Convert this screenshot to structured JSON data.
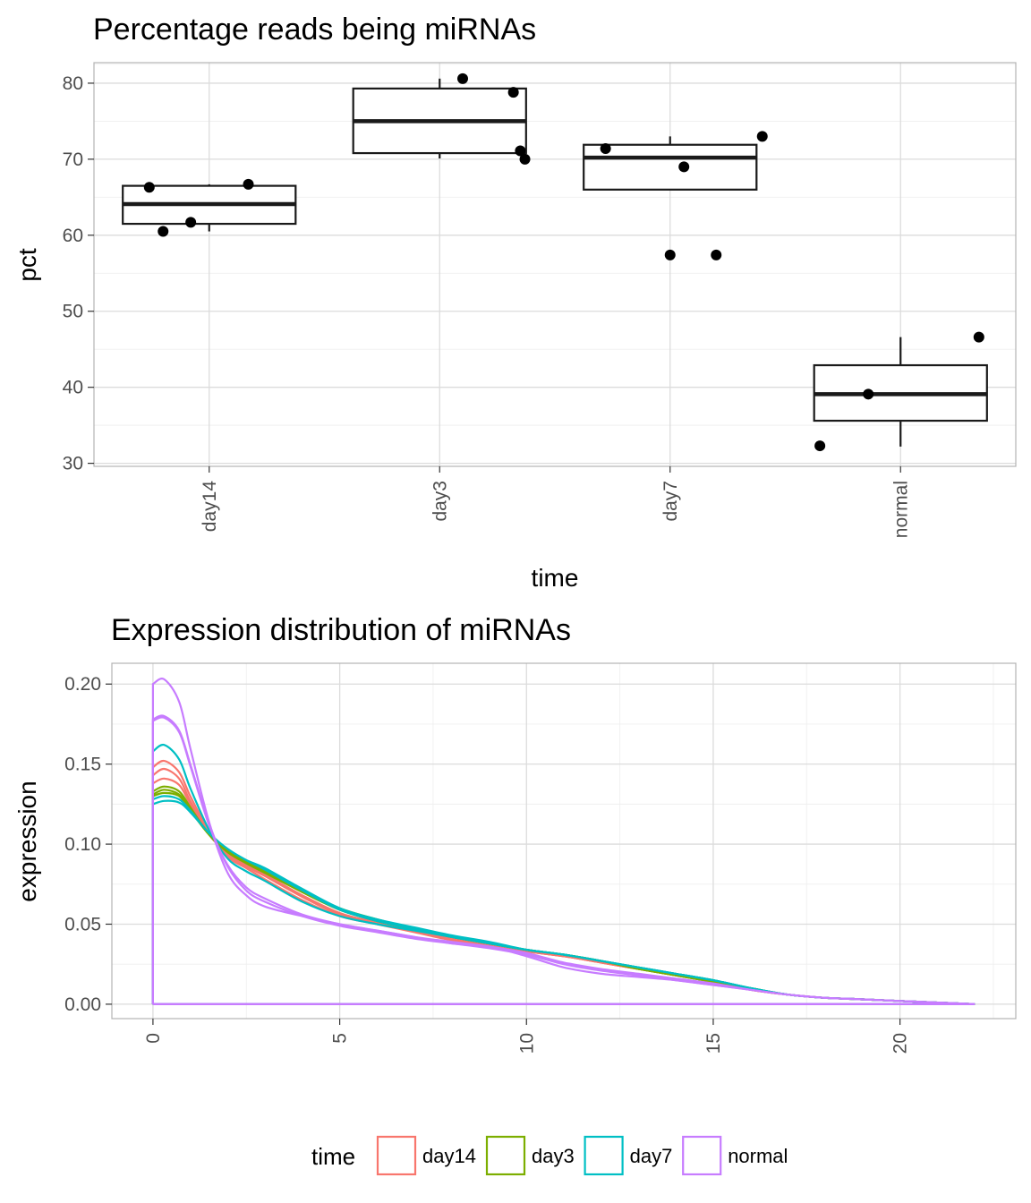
{
  "chart_data": [
    {
      "type": "box",
      "title": "Percentage reads being miRNAs",
      "xlabel": "time",
      "ylabel": "pct",
      "categories": [
        "day14",
        "day3",
        "day7",
        "normal"
      ],
      "yticks": [
        30,
        40,
        50,
        60,
        70,
        80
      ],
      "ylim": [
        29.6,
        82.7
      ],
      "grid": true,
      "boxes": [
        {
          "category": "day14",
          "whisker_low": 60.5,
          "q1": 61.5,
          "median": 64.1,
          "q3": 66.5,
          "whisker_high": 66.7
        },
        {
          "category": "day3",
          "whisker_low": 70.1,
          "q1": 70.8,
          "median": 75.0,
          "q3": 79.3,
          "whisker_high": 80.6
        },
        {
          "category": "day7",
          "whisker_low": 66.0,
          "q1": 66.0,
          "median": 70.2,
          "q3": 71.9,
          "whisker_high": 73.0
        },
        {
          "category": "normal",
          "whisker_low": 32.2,
          "q1": 35.6,
          "median": 39.1,
          "q3": 42.9,
          "whisker_high": 46.6
        }
      ],
      "points": [
        {
          "category": "day14",
          "jitter": -0.26,
          "y": 66.3
        },
        {
          "category": "day14",
          "jitter": -0.2,
          "y": 60.5
        },
        {
          "category": "day14",
          "jitter": -0.08,
          "y": 61.7
        },
        {
          "category": "day14",
          "jitter": 0.17,
          "y": 66.7
        },
        {
          "category": "day3",
          "jitter": 0.1,
          "y": 80.6
        },
        {
          "category": "day3",
          "jitter": 0.32,
          "y": 78.8
        },
        {
          "category": "day3",
          "jitter": 0.35,
          "y": 71.1
        },
        {
          "category": "day3",
          "jitter": 0.37,
          "y": 70.0
        },
        {
          "category": "day7",
          "jitter": -0.28,
          "y": 71.4
        },
        {
          "category": "day7",
          "jitter": 0.06,
          "y": 69.0
        },
        {
          "category": "day7",
          "jitter": 0.4,
          "y": 73.0
        },
        {
          "category": "day7",
          "jitter": 0.0,
          "y": 57.4
        },
        {
          "category": "day7",
          "jitter": 0.2,
          "y": 57.4
        },
        {
          "category": "normal",
          "jitter": -0.35,
          "y": 32.3
        },
        {
          "category": "normal",
          "jitter": -0.14,
          "y": 39.1
        },
        {
          "category": "normal",
          "jitter": 0.34,
          "y": 46.6
        }
      ]
    },
    {
      "type": "line",
      "title": "Expression distribution of miRNAs",
      "xlabel": "",
      "ylabel": "expression",
      "xticks": [
        0,
        5,
        10,
        15,
        20
      ],
      "yticks": [
        0.0,
        0.05,
        0.1,
        0.15,
        0.2
      ],
      "xlim": [
        -1.1,
        23.1
      ],
      "ylim": [
        -0.009,
        0.213
      ],
      "grid": true,
      "legend": {
        "title": "time",
        "position": "bottom"
      },
      "x": [
        0,
        0.3,
        0.7,
        1.0,
        1.5,
        2.0,
        2.5,
        3.0,
        4.0,
        5.0,
        6.0,
        7.0,
        8.0,
        9.0,
        10.0,
        11.0,
        12.0,
        13.0,
        14.0,
        15.0,
        16.0,
        17.0,
        18.0,
        19.0,
        20.0,
        21.0,
        22.0
      ],
      "series": [
        {
          "name": "day14",
          "color": "#F8766D",
          "values": [
            0.148,
            0.152,
            0.145,
            0.13,
            0.108,
            0.092,
            0.085,
            0.078,
            0.065,
            0.055,
            0.05,
            0.045,
            0.04,
            0.037,
            0.033,
            0.03,
            0.026,
            0.022,
            0.018,
            0.014,
            0.009,
            0.006,
            0.004,
            0.003,
            0.002,
            0.001,
            0.0
          ]
        },
        {
          "name": "day14",
          "color": "#F8766D",
          "values": [
            0.143,
            0.147,
            0.141,
            0.127,
            0.107,
            0.093,
            0.086,
            0.08,
            0.067,
            0.056,
            0.051,
            0.046,
            0.041,
            0.037,
            0.033,
            0.03,
            0.026,
            0.022,
            0.018,
            0.014,
            0.009,
            0.006,
            0.004,
            0.003,
            0.002,
            0.001,
            0.0
          ]
        },
        {
          "name": "day14",
          "color": "#F8766D",
          "values": [
            0.138,
            0.141,
            0.137,
            0.125,
            0.106,
            0.094,
            0.087,
            0.081,
            0.068,
            0.057,
            0.051,
            0.046,
            0.041,
            0.037,
            0.033,
            0.03,
            0.026,
            0.022,
            0.018,
            0.014,
            0.009,
            0.006,
            0.004,
            0.003,
            0.002,
            0.001,
            0.0
          ]
        },
        {
          "name": "day3",
          "color": "#7CAE00",
          "values": [
            0.133,
            0.136,
            0.133,
            0.123,
            0.106,
            0.095,
            0.088,
            0.082,
            0.07,
            0.059,
            0.052,
            0.047,
            0.042,
            0.038,
            0.034,
            0.031,
            0.027,
            0.022,
            0.018,
            0.014,
            0.01,
            0.006,
            0.004,
            0.003,
            0.002,
            0.001,
            0.0
          ]
        },
        {
          "name": "day3",
          "color": "#7CAE00",
          "values": [
            0.131,
            0.134,
            0.131,
            0.122,
            0.106,
            0.095,
            0.089,
            0.083,
            0.071,
            0.06,
            0.053,
            0.047,
            0.042,
            0.038,
            0.034,
            0.031,
            0.027,
            0.023,
            0.019,
            0.015,
            0.01,
            0.006,
            0.004,
            0.003,
            0.002,
            0.001,
            0.0
          ]
        },
        {
          "name": "day3",
          "color": "#7CAE00",
          "values": [
            0.13,
            0.132,
            0.13,
            0.121,
            0.106,
            0.096,
            0.089,
            0.083,
            0.07,
            0.059,
            0.052,
            0.047,
            0.042,
            0.038,
            0.034,
            0.031,
            0.027,
            0.022,
            0.018,
            0.014,
            0.01,
            0.006,
            0.004,
            0.003,
            0.002,
            0.001,
            0.0
          ]
        },
        {
          "name": "day7",
          "color": "#00BFC4",
          "values": [
            0.158,
            0.162,
            0.153,
            0.135,
            0.109,
            0.091,
            0.083,
            0.077,
            0.064,
            0.055,
            0.05,
            0.046,
            0.042,
            0.038,
            0.034,
            0.031,
            0.027,
            0.023,
            0.019,
            0.015,
            0.01,
            0.006,
            0.004,
            0.003,
            0.002,
            0.001,
            0.0
          ]
        },
        {
          "name": "day7",
          "color": "#00BFC4",
          "values": [
            0.128,
            0.13,
            0.128,
            0.121,
            0.107,
            0.097,
            0.09,
            0.084,
            0.071,
            0.059,
            0.052,
            0.047,
            0.042,
            0.038,
            0.034,
            0.031,
            0.027,
            0.023,
            0.019,
            0.015,
            0.01,
            0.006,
            0.004,
            0.003,
            0.002,
            0.001,
            0.0
          ]
        },
        {
          "name": "day7",
          "color": "#00BFC4",
          "values": [
            0.125,
            0.127,
            0.126,
            0.12,
            0.107,
            0.097,
            0.09,
            0.085,
            0.072,
            0.06,
            0.053,
            0.048,
            0.043,
            0.039,
            0.034,
            0.031,
            0.027,
            0.023,
            0.019,
            0.015,
            0.01,
            0.006,
            0.004,
            0.003,
            0.002,
            0.001,
            0.0
          ]
        },
        {
          "name": "normal",
          "color": "#C77CFF",
          "values": [
            0.2,
            0.203,
            0.189,
            0.16,
            0.114,
            0.082,
            0.068,
            0.061,
            0.055,
            0.05,
            0.046,
            0.042,
            0.038,
            0.036,
            0.03,
            0.023,
            0.019,
            0.017,
            0.015,
            0.012,
            0.009,
            0.006,
            0.004,
            0.003,
            0.002,
            0.001,
            0.0
          ]
        },
        {
          "name": "normal",
          "color": "#C77CFF",
          "values": [
            0.178,
            0.18,
            0.171,
            0.15,
            0.113,
            0.086,
            0.071,
            0.064,
            0.055,
            0.049,
            0.045,
            0.041,
            0.038,
            0.035,
            0.031,
            0.025,
            0.021,
            0.018,
            0.015,
            0.012,
            0.009,
            0.006,
            0.004,
            0.003,
            0.002,
            0.001,
            0.0
          ]
        },
        {
          "name": "normal",
          "color": "#C77CFF",
          "values": [
            0.177,
            0.179,
            0.17,
            0.149,
            0.112,
            0.087,
            0.073,
            0.066,
            0.056,
            0.05,
            0.046,
            0.042,
            0.039,
            0.036,
            0.032,
            0.026,
            0.022,
            0.019,
            0.016,
            0.013,
            0.009,
            0.006,
            0.004,
            0.003,
            0.002,
            0.001,
            0.0
          ]
        }
      ]
    }
  ],
  "legend": {
    "title": "time",
    "entries": [
      {
        "label": "day14",
        "color": "#F8766D"
      },
      {
        "label": "day3",
        "color": "#7CAE00"
      },
      {
        "label": "day7",
        "color": "#00BFC4"
      },
      {
        "label": "normal",
        "color": "#C77CFF"
      }
    ]
  }
}
